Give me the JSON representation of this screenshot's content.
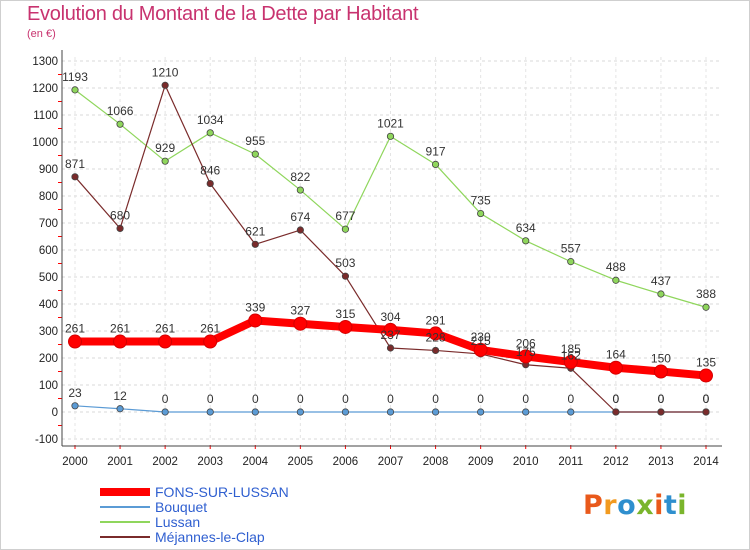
{
  "title": "Evolution du Montant de la Dette par Habitant",
  "subtitle": "(en €)",
  "logo": {
    "text": "Proxiti",
    "colors": [
      "#e9591b",
      "#f29a1f",
      "#2f8fce",
      "#7ab52c",
      "#e9591b",
      "#2f8fce",
      "#7ab52c"
    ]
  },
  "chart_data": {
    "type": "line",
    "x": [
      "2000",
      "2001",
      "2002",
      "2003",
      "2004",
      "2005",
      "2006",
      "2007",
      "2008",
      "2009",
      "2010",
      "2011",
      "2012",
      "2013",
      "2014"
    ],
    "ylim": [
      -100,
      1300
    ],
    "ystep": 100,
    "yticks": [
      "-100",
      "0",
      "100",
      "200",
      "300",
      "400",
      "500",
      "600",
      "700",
      "800",
      "900",
      "1000",
      "1100",
      "1200",
      "1300"
    ],
    "grid": "horizontal-dashed",
    "legend": "bottom-left",
    "series": [
      {
        "name": "FONS-SUR-LUSSAN",
        "color": "#ff0000",
        "thick": true,
        "values": [
          261,
          261,
          261,
          261,
          339,
          327,
          315,
          304,
          291,
          230,
          206,
          185,
          164,
          150,
          135
        ],
        "labels": [
          "261",
          "261",
          "261",
          "261",
          "339",
          "327",
          "315",
          "304",
          "291",
          "230",
          "206",
          "185",
          "164",
          "150",
          "135"
        ]
      },
      {
        "name": "Bouquet",
        "color": "#5b9bd5",
        "thick": false,
        "values": [
          23,
          12,
          0,
          0,
          0,
          0,
          0,
          0,
          0,
          0,
          0,
          0,
          0,
          0,
          0
        ],
        "labels": [
          "23",
          "12",
          "0",
          "0",
          "0",
          "0",
          "0",
          "0",
          "0",
          "0",
          "0",
          "0",
          "0",
          "0",
          "0"
        ]
      },
      {
        "name": "Lussan",
        "color": "#8fd65c",
        "thick": false,
        "values": [
          1193,
          1066,
          929,
          1034,
          955,
          822,
          677,
          1021,
          917,
          735,
          634,
          557,
          488,
          437,
          388
        ],
        "labels": [
          "1193",
          "1066",
          "929",
          "1034",
          "955",
          "822",
          "677",
          "1021",
          "917",
          "735",
          "634",
          "557",
          "488",
          "437",
          "388"
        ]
      },
      {
        "name": "Méjannes-le-Clap",
        "color": "#7a2b2b",
        "thick": false,
        "values": [
          871,
          680,
          1210,
          846,
          621,
          674,
          503,
          237,
          228,
          215,
          175,
          162,
          0,
          0,
          0
        ],
        "labels": [
          "871",
          "680",
          "1210",
          "846",
          "621",
          "674",
          "503",
          "237",
          "228",
          "215",
          "175",
          "162",
          "0",
          "0",
          "0"
        ]
      }
    ]
  }
}
